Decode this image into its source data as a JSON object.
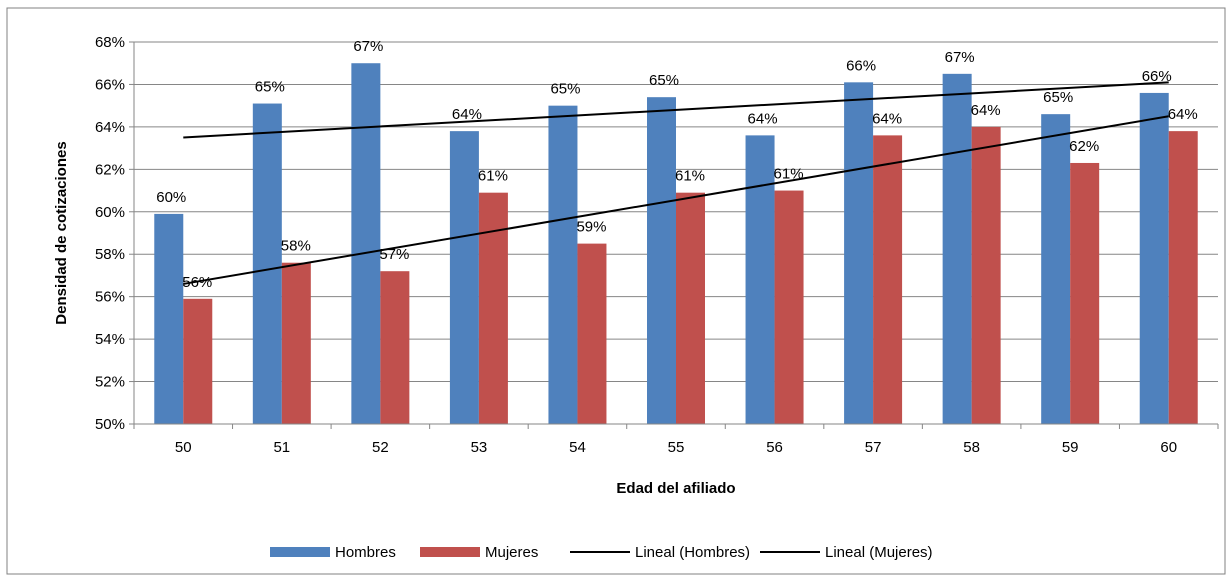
{
  "chart_data": {
    "type": "bar",
    "xlabel": "Edad del afiliado",
    "ylabel": "Densidad de cotizaciones",
    "categories": [
      "50",
      "51",
      "52",
      "53",
      "54",
      "55",
      "56",
      "57",
      "58",
      "59",
      "60"
    ],
    "ylim": [
      50,
      68
    ],
    "yticks": [
      50,
      52,
      54,
      56,
      58,
      60,
      62,
      64,
      66,
      68
    ],
    "y_unit": "%",
    "grid": "horizontal",
    "legend_position": "bottom",
    "series": [
      {
        "name": "Hombres",
        "color": "#4F81BD",
        "values": [
          59.9,
          65.1,
          67.0,
          63.8,
          65.0,
          65.4,
          63.6,
          66.1,
          66.5,
          64.6,
          65.6
        ],
        "labels": [
          "60%",
          "65%",
          "67%",
          "64%",
          "65%",
          "65%",
          "64%",
          "66%",
          "67%",
          "65%",
          "66%"
        ]
      },
      {
        "name": "Mujeres",
        "color": "#C0504D",
        "values": [
          55.9,
          57.6,
          57.2,
          60.9,
          58.5,
          60.9,
          61.0,
          63.6,
          64.0,
          62.3,
          63.8
        ],
        "labels": [
          "56%",
          "58%",
          "57%",
          "61%",
          "59%",
          "61%",
          "61%",
          "64%",
          "64%",
          "62%",
          "64%"
        ]
      }
    ],
    "trendlines": [
      {
        "name": "Lineal (Hombres)",
        "color": "#000000",
        "start": 63.5,
        "end": 66.1
      },
      {
        "name": "Lineal (Mujeres)",
        "color": "#000000",
        "start": 56.6,
        "end": 64.5
      }
    ]
  }
}
